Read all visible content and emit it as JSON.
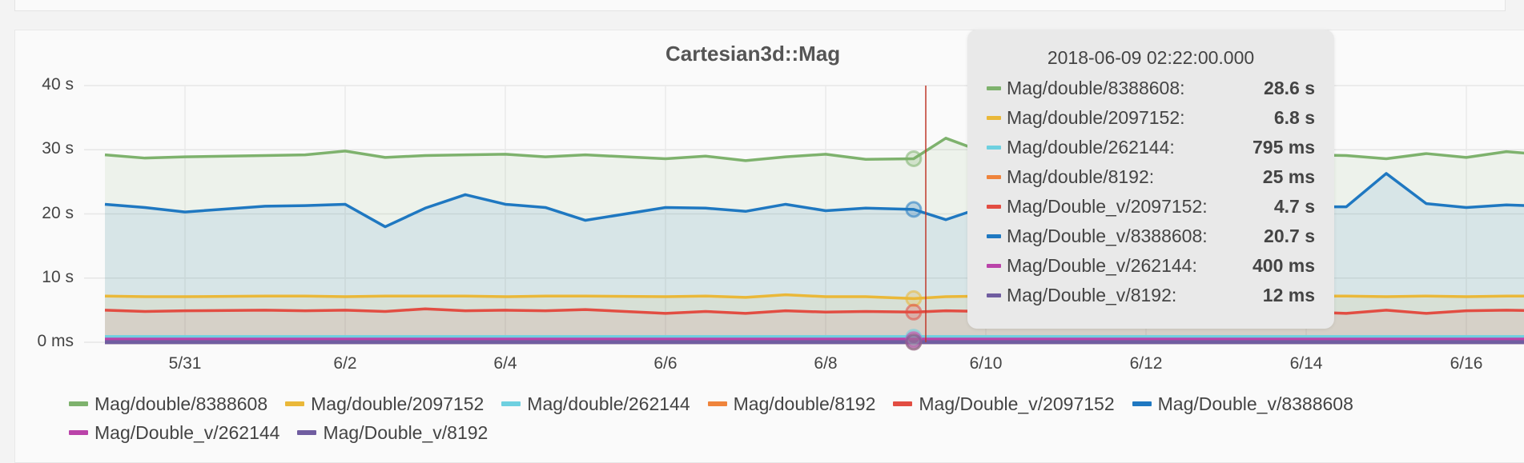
{
  "chart_data": {
    "type": "line",
    "title": "Cartesian3d::Mag",
    "y_ticks": [
      "40 s",
      "30 s",
      "20 s",
      "10 s",
      "0 ms"
    ],
    "ylim": [
      0,
      40
    ],
    "x_tick_labels": [
      "5/31",
      "6/2",
      "6/4",
      "6/6",
      "6/8",
      "6/10",
      "6/12",
      "6/14",
      "6/16"
    ],
    "x": [
      "2018-05-30",
      "2018-05-30 12:00",
      "2018-05-31",
      "2018-06-01",
      "2018-06-01 12:00",
      "2018-06-02",
      "2018-06-02 12:00",
      "2018-06-03",
      "2018-06-03 12:00",
      "2018-06-04",
      "2018-06-04 12:00",
      "2018-06-05",
      "2018-06-06",
      "2018-06-06 12:00",
      "2018-06-07",
      "2018-06-07 12:00",
      "2018-06-08",
      "2018-06-08 12:00",
      "2018-06-09 02:22",
      "2018-06-09 12:00",
      "2018-06-10",
      "2018-06-10 12:00",
      "2018-06-11",
      "2018-06-12",
      "2018-06-12 12:00",
      "2018-06-13",
      "2018-06-13 12:00",
      "2018-06-14",
      "2018-06-14 12:00",
      "2018-06-15",
      "2018-06-15 12:00",
      "2018-06-16",
      "2018-06-16 12:00",
      "2018-06-17"
    ],
    "grid": true,
    "legend_position": "bottom",
    "series": [
      {
        "name": "Mag/double/8388608",
        "color": "#7eb26d",
        "fill": true,
        "values": [
          29.2,
          28.7,
          28.9,
          29.1,
          29.2,
          29.8,
          28.8,
          29.1,
          29.2,
          29.3,
          28.9,
          29.2,
          28.6,
          29.0,
          28.3,
          28.9,
          29.3,
          28.5,
          28.6,
          31.8,
          29.5,
          29.3,
          29.1,
          29.0,
          29.2,
          28.8,
          29.0,
          29.2,
          29.1,
          28.6,
          29.4,
          28.8,
          29.7,
          29.2
        ]
      },
      {
        "name": "Mag/double/2097152",
        "color": "#eab839",
        "fill": true,
        "values": [
          7.2,
          7.1,
          7.1,
          7.2,
          7.2,
          7.1,
          7.2,
          7.2,
          7.2,
          7.1,
          7.2,
          7.2,
          7.1,
          7.2,
          7.0,
          7.4,
          7.1,
          7.1,
          6.8,
          7.1,
          7.2,
          7.2,
          7.1,
          7.2,
          7.2,
          7.1,
          7.2,
          7.2,
          7.2,
          7.1,
          7.2,
          7.1,
          7.2,
          7.2
        ]
      },
      {
        "name": "Mag/double/262144",
        "color": "#6ed0e0",
        "fill": false,
        "values": [
          0.8,
          0.8,
          0.8,
          0.8,
          0.8,
          0.8,
          0.8,
          0.8,
          0.8,
          0.8,
          0.8,
          0.8,
          0.8,
          0.8,
          0.8,
          0.8,
          0.8,
          0.8,
          0.795,
          0.8,
          0.8,
          0.8,
          0.8,
          0.8,
          0.8,
          0.8,
          0.8,
          0.8,
          0.8,
          0.8,
          0.8,
          0.8,
          0.8,
          0.8
        ]
      },
      {
        "name": "Mag/double/8192",
        "color": "#ef843c",
        "fill": false,
        "values": [
          0.025,
          0.025,
          0.025,
          0.025,
          0.025,
          0.025,
          0.025,
          0.025,
          0.025,
          0.025,
          0.025,
          0.025,
          0.025,
          0.025,
          0.025,
          0.025,
          0.025,
          0.025,
          0.025,
          0.025,
          0.025,
          0.025,
          0.025,
          0.025,
          0.025,
          0.025,
          0.025,
          0.025,
          0.025,
          0.025,
          0.025,
          0.025,
          0.025,
          0.025
        ]
      },
      {
        "name": "Mag/Double_v/2097152",
        "color": "#e24d42",
        "fill": true,
        "values": [
          5.0,
          4.8,
          4.9,
          5.0,
          4.9,
          5.0,
          4.8,
          5.2,
          4.9,
          5.0,
          4.9,
          5.1,
          4.5,
          4.8,
          4.5,
          4.9,
          4.7,
          4.8,
          4.7,
          4.9,
          4.8,
          4.9,
          4.7,
          4.8,
          4.9,
          4.6,
          4.8,
          4.7,
          4.5,
          5.0,
          4.5,
          4.9,
          5.0,
          4.9
        ]
      },
      {
        "name": "Mag/Double_v/8388608",
        "color": "#1f78c1",
        "fill": true,
        "values": [
          21.5,
          21.0,
          20.3,
          21.2,
          21.3,
          21.5,
          18.0,
          20.9,
          23.0,
          21.5,
          21.0,
          19.0,
          21.0,
          20.9,
          20.4,
          21.5,
          20.5,
          20.9,
          20.7,
          19.1,
          21.2,
          20.6,
          20.4,
          21.0,
          20.7,
          21.2,
          20.8,
          21.1,
          21.1,
          26.3,
          21.6,
          21.0,
          21.4,
          21.2
        ]
      },
      {
        "name": "Mag/Double_v/262144",
        "color": "#ba43a9",
        "fill": false,
        "values": [
          0.4,
          0.4,
          0.4,
          0.4,
          0.4,
          0.4,
          0.4,
          0.4,
          0.4,
          0.4,
          0.4,
          0.4,
          0.4,
          0.4,
          0.4,
          0.4,
          0.4,
          0.4,
          0.4,
          0.4,
          0.4,
          0.4,
          0.4,
          0.4,
          0.4,
          0.4,
          0.4,
          0.4,
          0.4,
          0.4,
          0.4,
          0.4,
          0.4,
          0.4
        ]
      },
      {
        "name": "Mag/Double_v/8192",
        "color": "#705da0",
        "fill": false,
        "values": [
          0.012,
          0.012,
          0.012,
          0.012,
          0.012,
          0.012,
          0.012,
          0.012,
          0.012,
          0.012,
          0.012,
          0.012,
          0.012,
          0.012,
          0.012,
          0.012,
          0.012,
          0.012,
          0.012,
          0.012,
          0.012,
          0.012,
          0.012,
          0.012,
          0.012,
          0.012,
          0.012,
          0.012,
          0.012,
          0.012,
          0.012,
          0.012,
          0.012,
          0.012
        ]
      }
    ],
    "hover": {
      "time": "2018-06-09 02:22:00.000",
      "crosshair_x": "2018-06-09 06:00",
      "rows": [
        {
          "name": "Mag/double/8388608:",
          "value": "28.6 s",
          "color": "#7eb26d"
        },
        {
          "name": "Mag/double/2097152:",
          "value": "6.8 s",
          "color": "#eab839"
        },
        {
          "name": "Mag/double/262144:",
          "value": "795 ms",
          "color": "#6ed0e0"
        },
        {
          "name": "Mag/double/8192:",
          "value": "25 ms",
          "color": "#ef843c"
        },
        {
          "name": "Mag/Double_v/2097152:",
          "value": "4.7 s",
          "color": "#e24d42"
        },
        {
          "name": "Mag/Double_v/8388608:",
          "value": "20.7 s",
          "color": "#1f78c1"
        },
        {
          "name": "Mag/Double_v/262144:",
          "value": "400 ms",
          "color": "#ba43a9"
        },
        {
          "name": "Mag/Double_v/8192:",
          "value": "12 ms",
          "color": "#705da0"
        }
      ]
    }
  }
}
